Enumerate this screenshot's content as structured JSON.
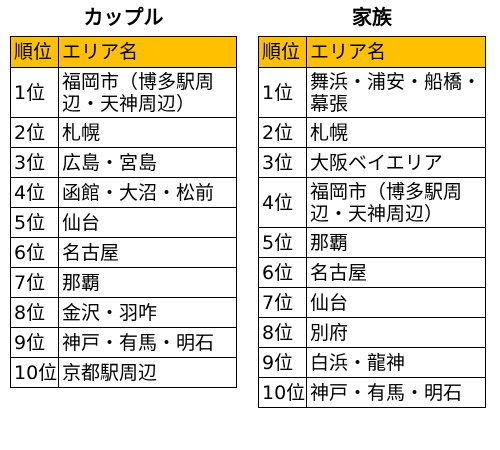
{
  "couple": {
    "title": "カップル",
    "header": {
      "rank": "順位",
      "area": "エリア名"
    },
    "rows": [
      {
        "rank": "1位",
        "area": "福岡市（博多駅周辺・天神周辺）"
      },
      {
        "rank": "2位",
        "area": "札幌"
      },
      {
        "rank": "3位",
        "area": "広島・宮島"
      },
      {
        "rank": "4位",
        "area": "函館・大沼・松前"
      },
      {
        "rank": "5位",
        "area": "仙台"
      },
      {
        "rank": "6位",
        "area": "名古屋"
      },
      {
        "rank": "7位",
        "area": "那覇"
      },
      {
        "rank": "8位",
        "area": "金沢・羽咋"
      },
      {
        "rank": "9位",
        "area": "神戸・有馬・明石"
      },
      {
        "rank": "10位",
        "area": "京都駅周辺"
      }
    ]
  },
  "family": {
    "title": "家族",
    "header": {
      "rank": "順位",
      "area": "エリア名"
    },
    "rows": [
      {
        "rank": "1位",
        "area": "舞浜・浦安・船橋・幕張"
      },
      {
        "rank": "2位",
        "area": "札幌"
      },
      {
        "rank": "3位",
        "area": "大阪ベイエリア"
      },
      {
        "rank": "4位",
        "area": "福岡市（博多駅周辺・天神周辺）"
      },
      {
        "rank": "5位",
        "area": "那覇"
      },
      {
        "rank": "6位",
        "area": "名古屋"
      },
      {
        "rank": "7位",
        "area": "仙台"
      },
      {
        "rank": "8位",
        "area": "別府"
      },
      {
        "rank": "9位",
        "area": "白浜・龍神"
      },
      {
        "rank": "10位",
        "area": "神戸・有馬・明石"
      }
    ]
  }
}
